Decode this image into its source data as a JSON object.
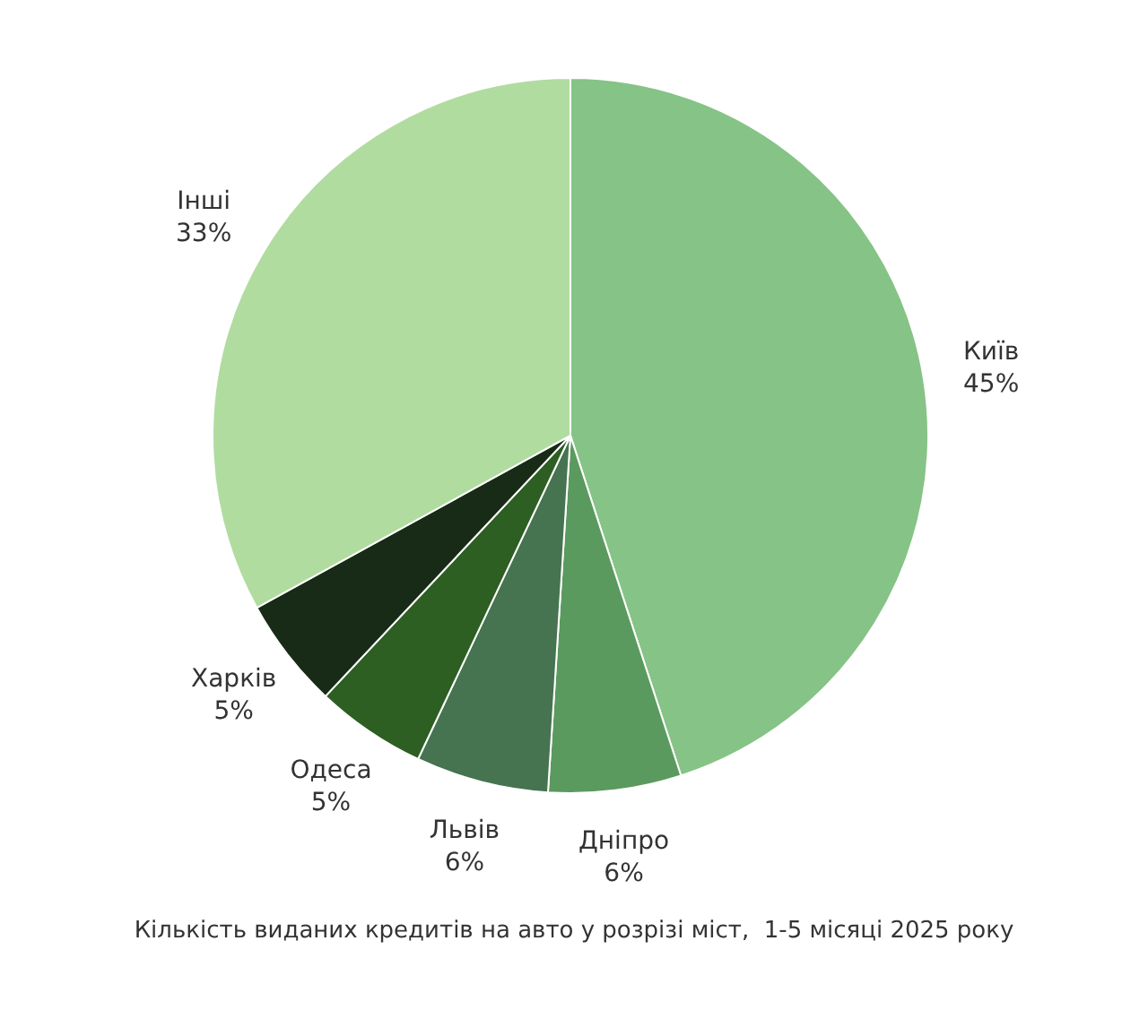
{
  "chart_data": {
    "type": "pie",
    "title": "Кількість виданих кредитів на авто у розрізі міст,  1-5 місяці 2025 року",
    "categories": [
      "Київ",
      "Дніпро",
      "Львів",
      "Одеса",
      "Харків",
      "Інші"
    ],
    "values": [
      45,
      6,
      6,
      5,
      5,
      33
    ],
    "value_labels": [
      "45%",
      "6%",
      "6%",
      "5%",
      "5%",
      "33%"
    ],
    "colors": [
      "#86c386",
      "#5a9a5e",
      "#467350",
      "#2d5e22",
      "#172b16",
      "#b0dca0"
    ],
    "legend": false
  }
}
